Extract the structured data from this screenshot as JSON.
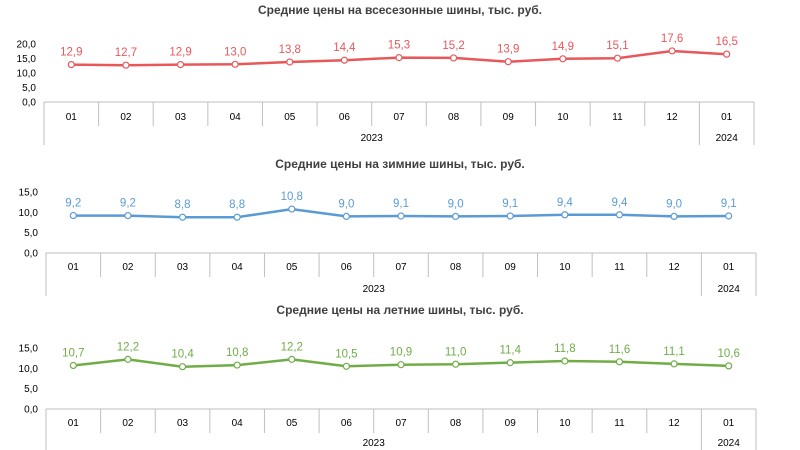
{
  "chart_data": [
    {
      "type": "line",
      "title": "Средние цены на всесезонные шины, тыс. руб.",
      "categories": [
        "01",
        "02",
        "03",
        "04",
        "05",
        "06",
        "07",
        "08",
        "09",
        "10",
        "11",
        "12",
        "01"
      ],
      "years": [
        {
          "label": "2023",
          "span": [
            0,
            11
          ]
        },
        {
          "label": "2024",
          "span": [
            12,
            12
          ]
        }
      ],
      "values": [
        12.9,
        12.7,
        12.9,
        13.0,
        13.8,
        14.4,
        15.3,
        15.2,
        13.9,
        14.9,
        15.1,
        17.6,
        16.5
      ],
      "value_labels": [
        "12,9",
        "12,7",
        "12,9",
        "13,0",
        "13,8",
        "14,4",
        "15,3",
        "15,2",
        "13,9",
        "14,9",
        "15,1",
        "17,6",
        "16,5"
      ],
      "y_ticks": [
        "0,0",
        "5,0",
        "10,0",
        "15,0",
        "20,0"
      ],
      "ylim": [
        0,
        20
      ],
      "grid": false,
      "color": "#e8575a"
    },
    {
      "type": "line",
      "title": "Средние цены на зимние шины, тыс. руб.",
      "categories": [
        "01",
        "02",
        "03",
        "04",
        "05",
        "06",
        "07",
        "08",
        "09",
        "10",
        "11",
        "12",
        "01"
      ],
      "years": [
        {
          "label": "2023",
          "span": [
            0,
            11
          ]
        },
        {
          "label": "2024",
          "span": [
            12,
            12
          ]
        }
      ],
      "values": [
        9.2,
        9.2,
        8.8,
        8.8,
        10.8,
        9.0,
        9.1,
        9.0,
        9.1,
        9.4,
        9.4,
        9.0,
        9.1
      ],
      "value_labels": [
        "9,2",
        "9,2",
        "8,8",
        "8,8",
        "10,8",
        "9,0",
        "9,1",
        "9,0",
        "9,1",
        "9,4",
        "9,4",
        "9,0",
        "9,1"
      ],
      "y_ticks": [
        "0,0",
        "5,0",
        "10,0",
        "15,0"
      ],
      "ylim": [
        0,
        15
      ],
      "grid": false,
      "color": "#5b9bd5"
    },
    {
      "type": "line",
      "title": "Средние цены на летние шины, тыс. руб.",
      "categories": [
        "01",
        "02",
        "03",
        "04",
        "05",
        "06",
        "07",
        "08",
        "09",
        "10",
        "11",
        "12",
        "01"
      ],
      "years": [
        {
          "label": "2023",
          "span": [
            0,
            11
          ]
        },
        {
          "label": "2024",
          "span": [
            12,
            12
          ]
        }
      ],
      "values": [
        10.7,
        12.2,
        10.4,
        10.8,
        12.2,
        10.5,
        10.9,
        11.0,
        11.4,
        11.8,
        11.6,
        11.1,
        10.6
      ],
      "value_labels": [
        "10,7",
        "12,2",
        "10,4",
        "10,8",
        "12,2",
        "10,5",
        "10,9",
        "11,0",
        "11,4",
        "11,8",
        "11,6",
        "11,1",
        "10,6"
      ],
      "y_ticks": [
        "0,0",
        "5,0",
        "10,0",
        "15,0"
      ],
      "ylim": [
        0,
        15
      ],
      "grid": false,
      "color": "#70ad47"
    }
  ]
}
